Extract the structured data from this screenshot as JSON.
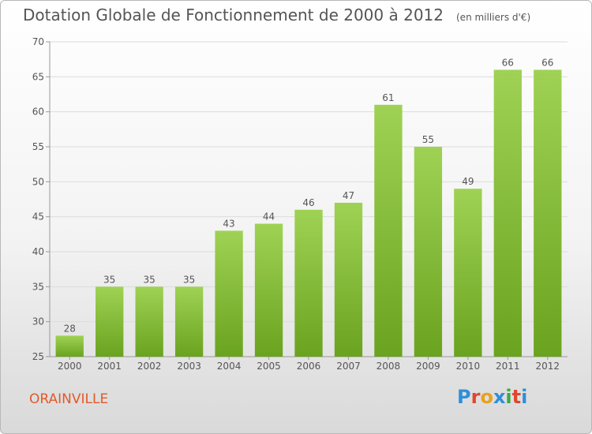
{
  "header": {
    "title": "Dotation Globale de Fonctionnement de 2000 à 2012",
    "unit": "(en milliers d'€)"
  },
  "footer": {
    "town": "ORAINVILLE",
    "logo_text": "Proxiti",
    "logo_colors": [
      "#2f8fd8",
      "#e0462f",
      "#e8a21c",
      "#2f8fd8",
      "#3aa845",
      "#e0462f",
      "#2f8fd8"
    ]
  },
  "colors": {
    "bar_light": "#9fd254",
    "bar_dark": "#6aa31f",
    "grid": "#dcdcdc",
    "axis": "#999999",
    "text": "#555555"
  },
  "chart_data": {
    "type": "bar",
    "categories": [
      "2000",
      "2001",
      "2002",
      "2003",
      "2004",
      "2005",
      "2006",
      "2007",
      "2008",
      "2009",
      "2010",
      "2011",
      "2012"
    ],
    "values": [
      28,
      35,
      35,
      35,
      43,
      44,
      46,
      47,
      61,
      55,
      49,
      66,
      66
    ],
    "ylim": [
      25,
      70
    ],
    "yticks": [
      25,
      30,
      35,
      40,
      45,
      50,
      55,
      60,
      65,
      70
    ],
    "grid": true,
    "data_labels": true
  }
}
